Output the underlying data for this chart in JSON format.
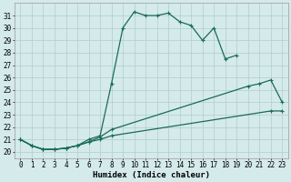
{
  "xlabel": "Humidex (Indice chaleur)",
  "xlim": [
    -0.5,
    23.5
  ],
  "ylim": [
    19.5,
    32.0
  ],
  "yticks": [
    20,
    21,
    22,
    23,
    24,
    25,
    26,
    27,
    28,
    29,
    30,
    31
  ],
  "xticks": [
    0,
    1,
    2,
    3,
    4,
    5,
    6,
    7,
    8,
    9,
    10,
    11,
    12,
    13,
    14,
    15,
    16,
    17,
    18,
    19,
    20,
    21,
    22,
    23
  ],
  "bg_color": "#d5eaea",
  "grid_color": "#aecece",
  "line_color": "#1a6b5a",
  "line1_x": [
    0,
    1,
    2,
    3,
    4,
    5,
    6,
    7,
    8,
    9,
    10,
    11,
    12,
    13,
    14,
    15,
    16,
    17,
    18,
    19
  ],
  "line1_y": [
    21.0,
    20.5,
    20.2,
    20.2,
    20.3,
    20.5,
    21.0,
    21.3,
    25.5,
    30.0,
    31.3,
    31.0,
    31.0,
    31.2,
    30.5,
    30.2,
    29.0,
    30.0,
    27.5,
    27.8
  ],
  "line2_x": [
    0,
    1,
    2,
    3,
    4,
    5,
    6,
    7,
    8,
    20,
    21,
    22,
    23
  ],
  "line2_y": [
    21.0,
    20.5,
    20.2,
    20.2,
    20.3,
    20.5,
    20.8,
    21.2,
    21.8,
    25.3,
    25.5,
    25.8,
    24.0
  ],
  "line3_x": [
    0,
    1,
    2,
    3,
    4,
    5,
    6,
    7,
    8,
    22,
    23
  ],
  "line3_y": [
    21.0,
    20.5,
    20.2,
    20.2,
    20.3,
    20.5,
    20.8,
    21.0,
    21.3,
    23.3,
    23.3
  ],
  "axis_fontsize": 6.5,
  "tick_fontsize": 5.5
}
